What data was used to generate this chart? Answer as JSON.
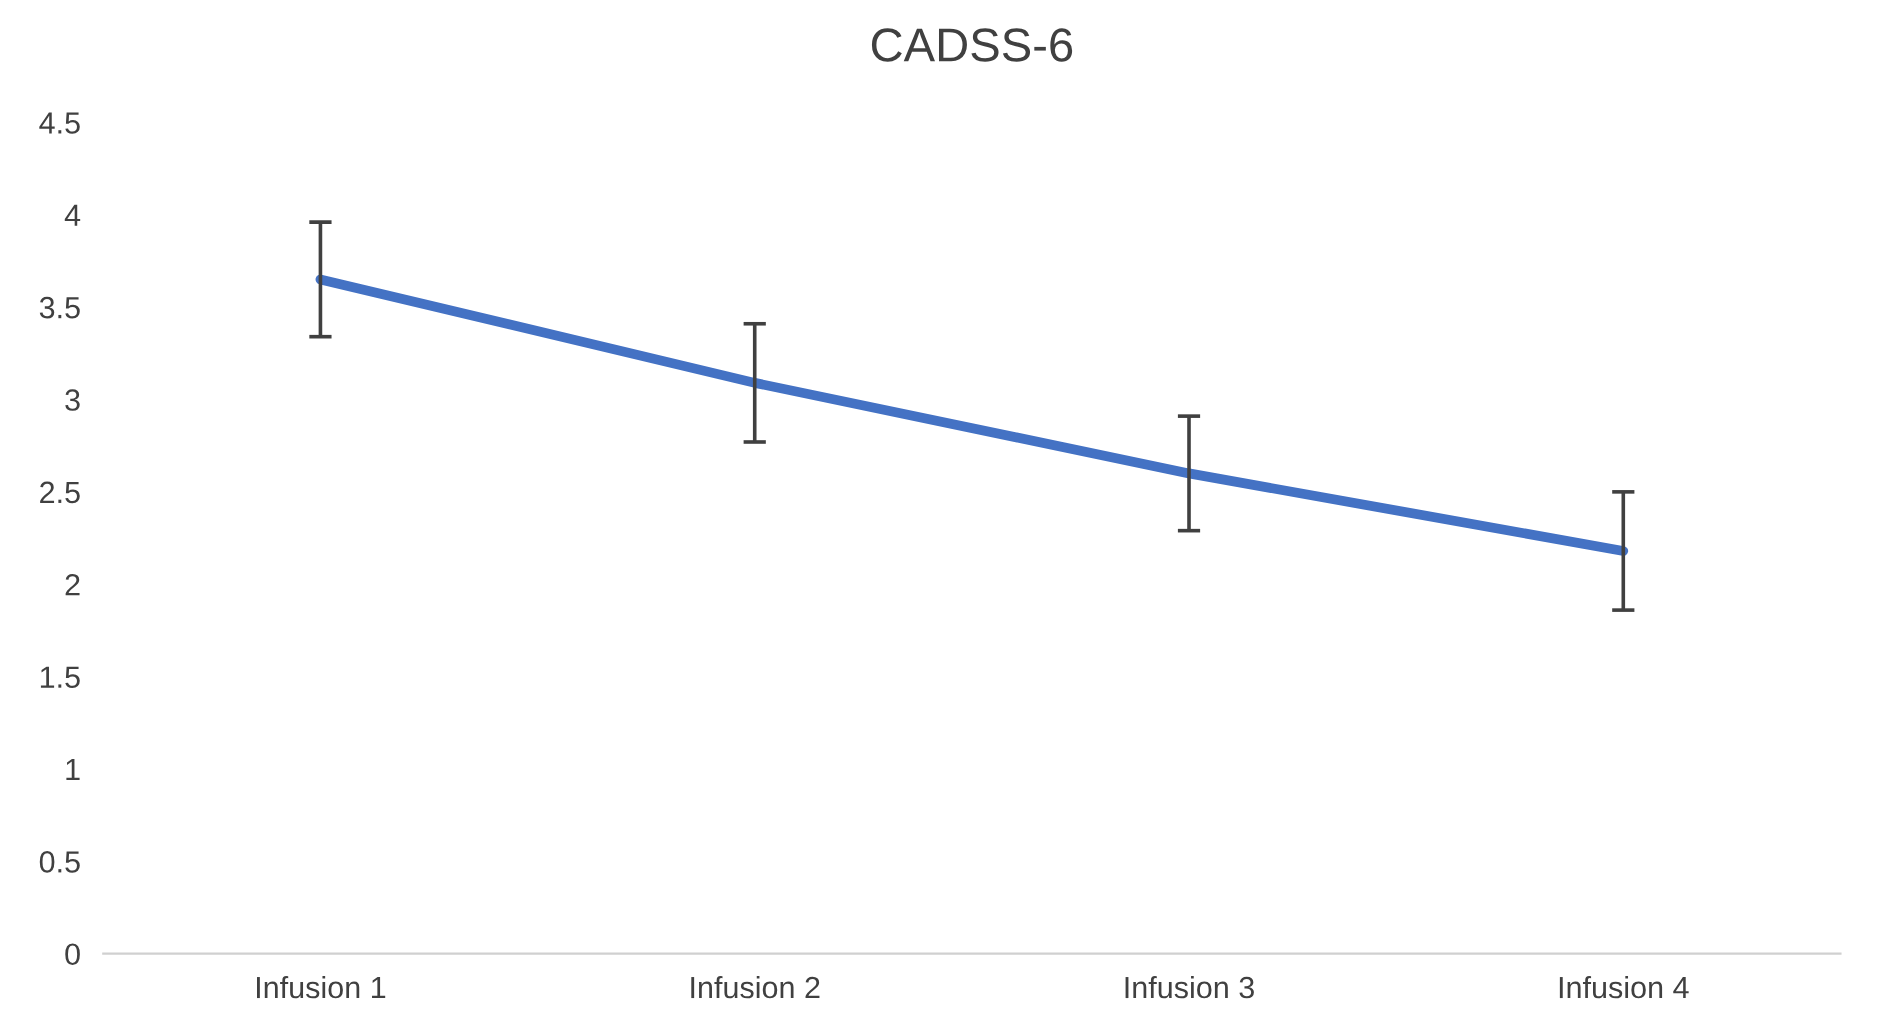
{
  "chart_data": {
    "type": "line",
    "title": "CADSS-6",
    "categories": [
      "Infusion 1",
      "Infusion 2",
      "Infusion 3",
      "Infusion 4"
    ],
    "series": [
      {
        "color": "#4472c4",
        "values": [
          3.65,
          3.09,
          2.6,
          2.18
        ],
        "errors": [
          0.31,
          0.32,
          0.31,
          0.32
        ]
      }
    ],
    "ylim": [
      0,
      4.5
    ],
    "yticks": [
      0,
      0.5,
      1,
      1.5,
      2,
      2.5,
      3,
      3.5,
      4,
      4.5
    ],
    "grid": false,
    "marker": "none",
    "line_style": "solid"
  }
}
